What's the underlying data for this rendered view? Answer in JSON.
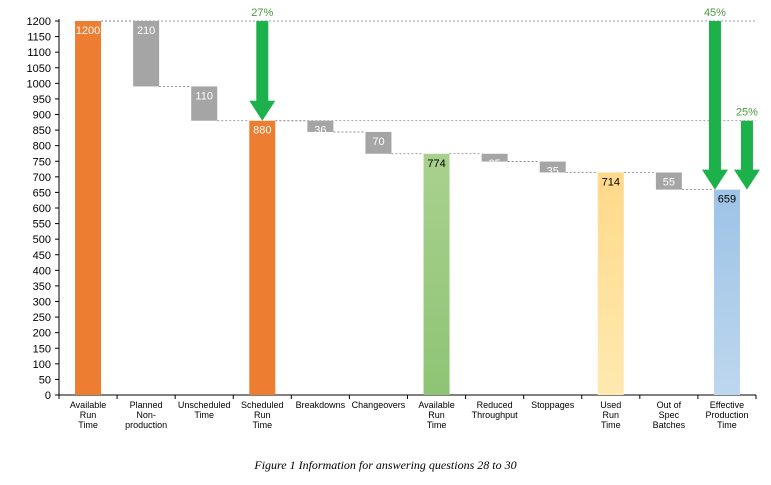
{
  "caption": "Figure 1 Information for answering questions 28 to 30",
  "chart_data": {
    "type": "bar",
    "subtype": "waterfall",
    "title": "",
    "xlabel": "",
    "ylabel": "",
    "ylim": [
      0,
      1200
    ],
    "ytick_step": 50,
    "grid": false,
    "categories": [
      "Available Run Time",
      "Planned Non-production",
      "Unscheduled Time",
      "Scheduled Run Time",
      "Breakdowns",
      "Changeovers",
      "Available Run Time",
      "Reduced Throughput",
      "Stoppages",
      "Used Run Time",
      "Out of Spec Batches",
      "Effective Production Time"
    ],
    "category_lines": [
      [
        "Available",
        "Run",
        "Time"
      ],
      [
        "Planned",
        "Non-",
        "production"
      ],
      [
        "Unscheduled",
        "Time"
      ],
      [
        "Scheduled",
        "Run",
        "Time"
      ],
      [
        "Breakdowns"
      ],
      [
        "Changeovers"
      ],
      [
        "Available",
        "Run",
        "Time"
      ],
      [
        "Reduced",
        "Throughput"
      ],
      [
        "Stoppages"
      ],
      [
        "Used",
        "Run",
        "Time"
      ],
      [
        "Out of",
        "Spec",
        "Batches"
      ],
      [
        "Effective",
        "Production",
        "Time"
      ]
    ],
    "bars": [
      {
        "kind": "total",
        "value": 1200,
        "label": "1200",
        "color": "#ED7D31",
        "label_color": "#ffffff"
      },
      {
        "kind": "loss",
        "value": 210,
        "label": "210",
        "color": "#A5A5A5",
        "label_color": "#ffffff"
      },
      {
        "kind": "loss",
        "value": 110,
        "label": "110",
        "color": "#A5A5A5",
        "label_color": "#ffffff"
      },
      {
        "kind": "total",
        "value": 880,
        "label": "880",
        "color": "#ED7D31",
        "label_color": "#ffffff"
      },
      {
        "kind": "loss",
        "value": 36,
        "label": "36",
        "color": "#A5A5A5",
        "label_color": "#ffffff"
      },
      {
        "kind": "loss",
        "value": 70,
        "label": "70",
        "color": "#A5A5A5",
        "label_color": "#ffffff"
      },
      {
        "kind": "total",
        "value": 774,
        "label": "774",
        "color": "#A9D18E",
        "label_color": "#000000",
        "gradient_to": "#8EC474"
      },
      {
        "kind": "loss",
        "value": 25,
        "label": "25",
        "color": "#A5A5A5",
        "label_color": "#ffffff"
      },
      {
        "kind": "loss",
        "value": 35,
        "label": "35",
        "color": "#A5A5A5",
        "label_color": "#ffffff"
      },
      {
        "kind": "total",
        "value": 714,
        "label": "714",
        "color": "#FFD98A",
        "label_color": "#000000",
        "gradient_to": "#FFE9B0"
      },
      {
        "kind": "loss",
        "value": 55,
        "label": "55",
        "color": "#A5A5A5",
        "label_color": "#ffffff"
      },
      {
        "kind": "total",
        "value": 659,
        "label": "659",
        "color": "#9DC3E6",
        "label_color": "#000000",
        "gradient_to": "#BDD7EE"
      }
    ],
    "annotations": [
      {
        "label": "27%",
        "from_value": 1200,
        "to_value": 880,
        "at_category": 3,
        "color": "#1DB14B"
      },
      {
        "label": "45%",
        "from_value": 1200,
        "to_value": 659,
        "at_category": 11,
        "side": "left",
        "color": "#1DB14B"
      },
      {
        "label": "25%",
        "from_value": 880,
        "to_value": 659,
        "at_category": 11,
        "side": "right",
        "color": "#1DB14B"
      }
    ]
  }
}
